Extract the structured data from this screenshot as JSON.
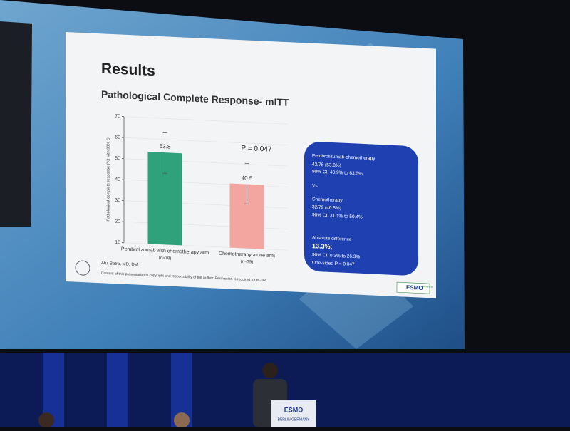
{
  "slide": {
    "title": "Results",
    "author": "Atul Batra, MD, DM",
    "note": "Content of this presentation is copyright and responsibility of the author. Permission is required for re-use.",
    "logo": "ESMO",
    "logo_sub": "congress"
  },
  "chart_data": {
    "type": "bar",
    "title": "Pathological Complete Response- mITT",
    "y_label": "Pathological complete response (%) with 90% CI",
    "categories": [
      "Pembrolizumab with chemotherapy arm",
      "Chemotherapy alone arm"
    ],
    "category_notes": [
      "(n=78)",
      "(n=79)"
    ],
    "values": [
      53.8,
      40.5
    ],
    "ci_low": [
      43.9,
      31.1
    ],
    "ci_high": [
      63.5,
      50.4
    ],
    "colors": [
      "#2fa27c",
      "#f2a69f"
    ],
    "ylim": [
      10,
      70
    ],
    "yticks": [
      10,
      20,
      30,
      40,
      50,
      60,
      70
    ],
    "annotation": "P = 0.047"
  },
  "summary_box": {
    "lines": [
      "Pembrolizumab-chemotherapy",
      "42/78 (53.8%)",
      "90% CI, 43.9% to 63.5%",
      "Vs",
      "Chemotherapy",
      "32/79 (40.5%)",
      "90% CI, 31.1% to 50.4%",
      "Absolute difference",
      "13.3%;",
      "90% CI, 0.3% to 26.3%",
      "One-sided P = 0.047"
    ]
  },
  "podium": {
    "logo": "ESMO",
    "city": "BERLIN GERMANY"
  }
}
